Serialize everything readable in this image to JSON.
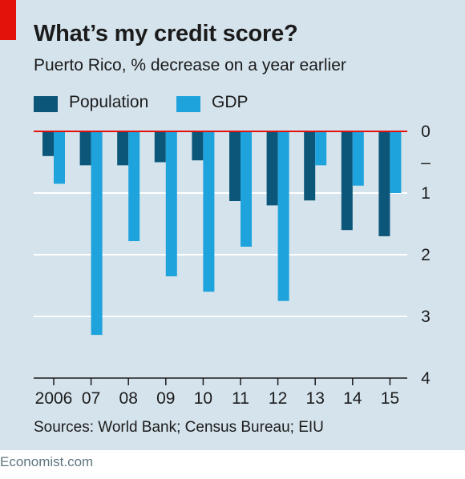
{
  "title": "What’s my credit score?",
  "subtitle": "Puerto Rico, % decrease on a year earlier",
  "source": "Sources: World Bank; Census Bureau; EIU",
  "footer": "Economist.com",
  "colors": {
    "population": "#0b5679",
    "gdp": "#1fa3dc",
    "zero_line": "#e3120b",
    "background": "#d5e3ec",
    "grid": "#ffffff"
  },
  "legend": [
    {
      "label": "Population",
      "color": "#0b5679"
    },
    {
      "label": "GDP",
      "color": "#1fa3dc"
    }
  ],
  "chart_data": {
    "type": "bar",
    "categories": [
      "2006",
      "07",
      "08",
      "09",
      "10",
      "11",
      "12",
      "13",
      "14",
      "15"
    ],
    "series": [
      {
        "name": "Population",
        "values": [
          0.4,
          0.55,
          0.55,
          0.5,
          0.47,
          1.13,
          1.2,
          1.12,
          1.6,
          1.7
        ]
      },
      {
        "name": "GDP",
        "values": [
          0.85,
          3.3,
          1.78,
          2.35,
          2.6,
          1.87,
          2.75,
          0.55,
          0.88,
          1.0
        ]
      }
    ],
    "y_axis": {
      "range": [
        0,
        4
      ],
      "direction": "downward",
      "position": "right",
      "tick_values": [
        0,
        0.5,
        1,
        2,
        3,
        4
      ],
      "tick_labels": [
        "0",
        "–",
        "1",
        "2",
        "3",
        "4"
      ]
    },
    "grid": true,
    "legend_position": "top-left"
  }
}
